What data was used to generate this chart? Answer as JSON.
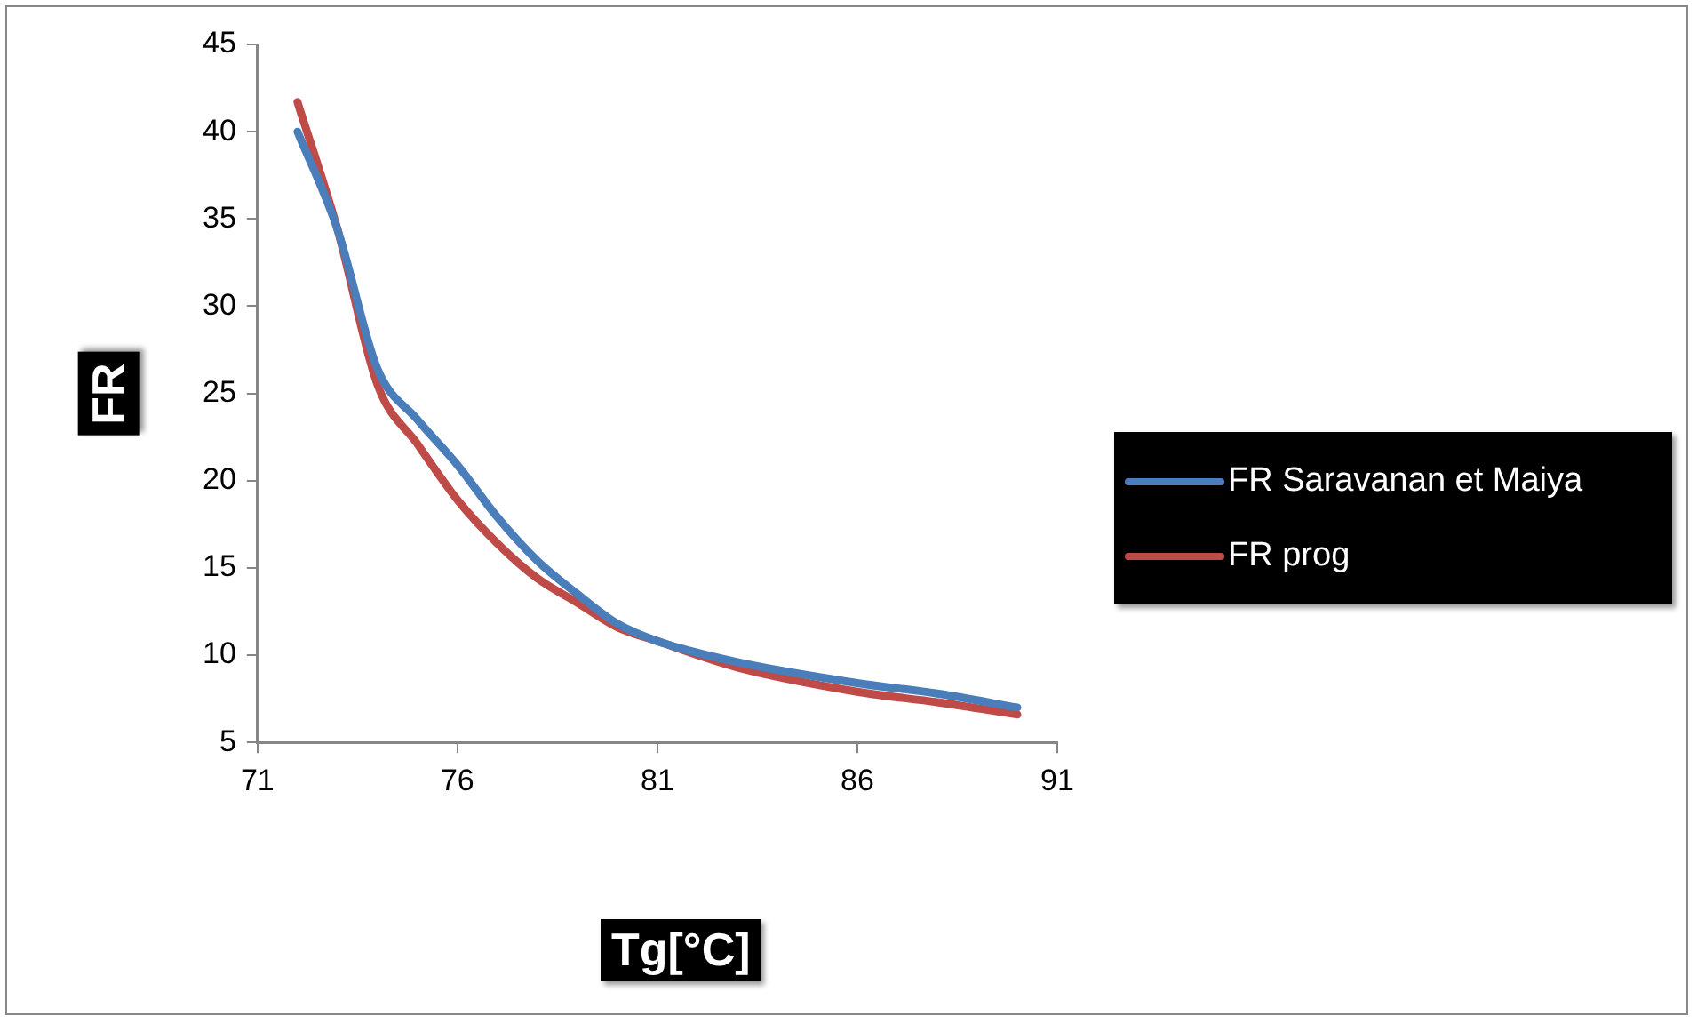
{
  "chart_data": {
    "type": "line",
    "xlabel": "Tg[°C]",
    "ylabel": "FR",
    "xlim": [
      71,
      91
    ],
    "xticks": [
      71,
      76,
      81,
      86,
      91
    ],
    "ylim": [
      5,
      45
    ],
    "yticks": [
      5,
      10,
      15,
      20,
      25,
      30,
      35,
      40,
      45
    ],
    "legend": "right",
    "marker": "none",
    "x": [
      72,
      73,
      74,
      75,
      76,
      77,
      78,
      79,
      80,
      81,
      83,
      86,
      88,
      90
    ],
    "series": [
      {
        "name": "FR Saravanan et Maiya",
        "color": "#4a7ebb",
        "values": [
          40,
          34.4,
          26.4,
          23.5,
          20.9,
          17.9,
          15.4,
          13.5,
          11.8,
          10.8,
          9.6,
          8.4,
          7.8,
          7.0
        ]
      },
      {
        "name": "FR prog",
        "color": "#be4b48",
        "values": [
          41.7,
          34.4,
          25.5,
          22.1,
          18.9,
          16.4,
          14.4,
          13,
          11.6,
          10.8,
          9.3,
          7.9,
          7.3,
          6.6
        ]
      }
    ]
  }
}
